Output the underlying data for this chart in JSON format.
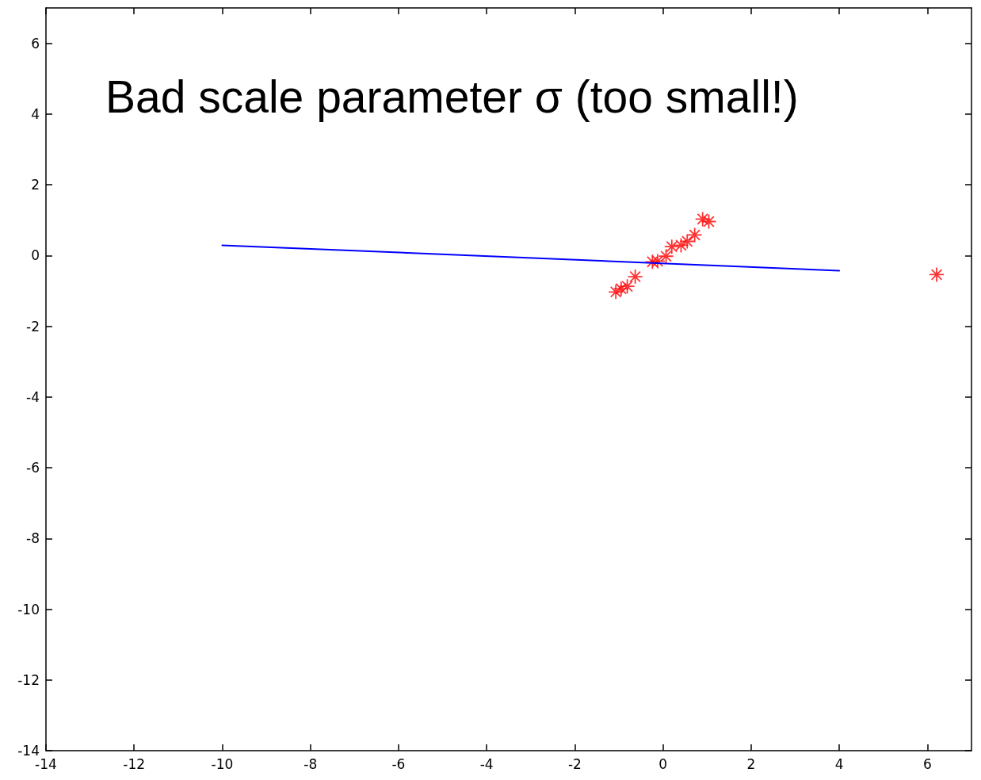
{
  "chart_data": {
    "type": "scatter",
    "annotations": [
      "Bad scale parameter σ (too small!)"
    ],
    "xlim": [
      -14,
      7
    ],
    "ylim": [
      -14,
      7
    ],
    "xticks": [
      -14,
      -12,
      -10,
      -8,
      -6,
      -4,
      -2,
      0,
      2,
      4,
      6
    ],
    "yticks": [
      -14,
      -12,
      -10,
      -8,
      -6,
      -4,
      -2,
      0,
      2,
      4,
      6
    ],
    "grid": false,
    "series": [
      {
        "type": "line",
        "color": "#0000ff",
        "line_style": "solid",
        "marker": "none",
        "x": [
          -10,
          4
        ],
        "values": [
          0.29,
          -0.43
        ]
      },
      {
        "color": "#ff0000",
        "marker": "star",
        "x": [
          -1.07,
          -0.95,
          -0.81,
          -0.63,
          -0.24,
          -0.12,
          0.07,
          0.2,
          0.41,
          0.55,
          0.72,
          0.9,
          1.04,
          6.21
        ],
        "values": [
          -1.03,
          -0.94,
          -0.87,
          -0.6,
          -0.18,
          -0.16,
          -0.02,
          0.25,
          0.29,
          0.4,
          0.58,
          1.03,
          0.96,
          -0.54
        ]
      }
    ]
  }
}
